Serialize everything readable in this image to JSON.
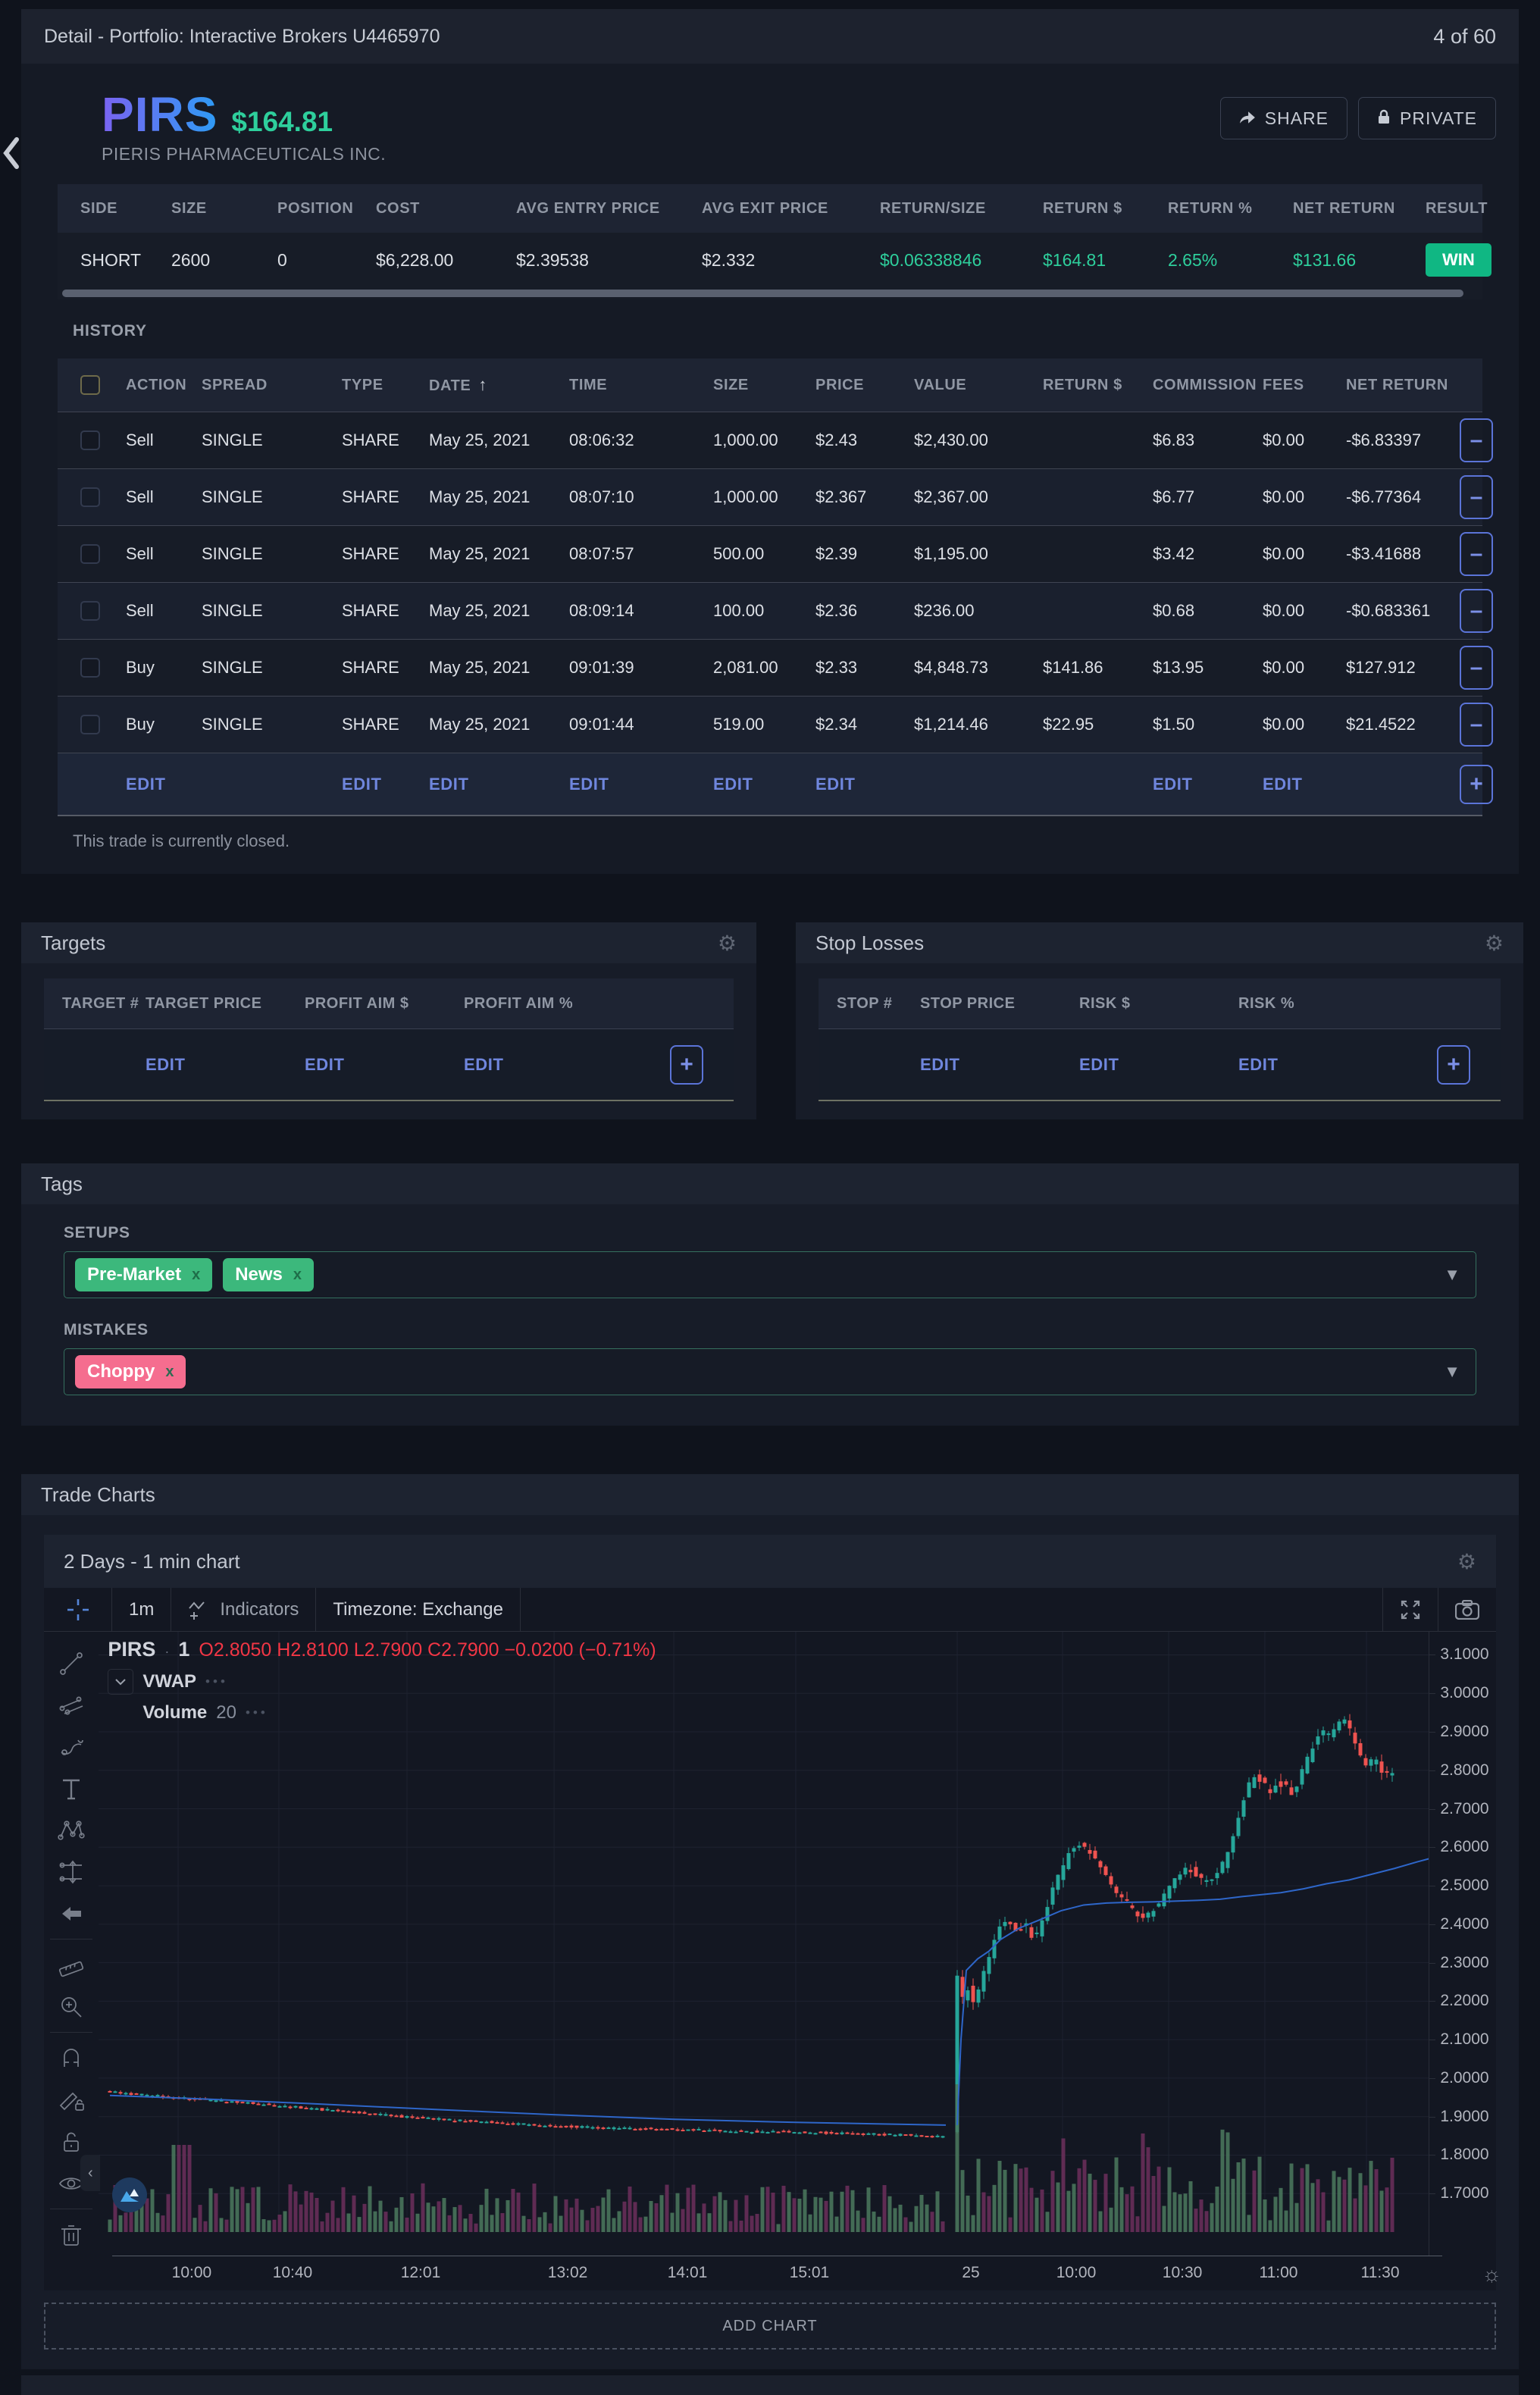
{
  "top_bar": {
    "breadcrumb": "Detail  -  Portfolio:   Interactive Brokers U4465970",
    "counter": "4 of 60"
  },
  "header": {
    "symbol": "PIRS",
    "price": "$164.81",
    "company": "PIERIS PHARMACEUTICALS INC.",
    "share_label": "SHARE",
    "private_label": "PRIVATE"
  },
  "summary": {
    "columns": [
      "SIDE",
      "SIZE",
      "POSITION",
      "COST",
      "AVG ENTRY PRICE",
      "AVG EXIT PRICE",
      "RETURN/SIZE",
      "RETURN $",
      "RETURN %",
      "NET RETURN",
      "RESULT"
    ],
    "values": [
      "SHORT",
      "2600",
      "0",
      "$6,228.00",
      "$2.39538",
      "$2.332",
      "$0.06338846",
      "$164.81",
      "2.65%",
      "$131.66"
    ],
    "result": "WIN"
  },
  "history": {
    "title": "HISTORY",
    "columns": [
      "ACTION",
      "SPREAD",
      "TYPE",
      "DATE",
      "TIME",
      "SIZE",
      "PRICE",
      "VALUE",
      "RETURN $",
      "COMMISSION",
      "FEES",
      "NET RETURN"
    ],
    "rows": [
      [
        "Sell",
        "SINGLE",
        "SHARE",
        "May 25, 2021",
        "08:06:32",
        "1,000.00",
        "$2.43",
        "$2,430.00",
        "",
        "$6.83",
        "$0.00",
        "-$6.83397"
      ],
      [
        "Sell",
        "SINGLE",
        "SHARE",
        "May 25, 2021",
        "08:07:10",
        "1,000.00",
        "$2.367",
        "$2,367.00",
        "",
        "$6.77",
        "$0.00",
        "-$6.77364"
      ],
      [
        "Sell",
        "SINGLE",
        "SHARE",
        "May 25, 2021",
        "08:07:57",
        "500.00",
        "$2.39",
        "$1,195.00",
        "",
        "$3.42",
        "$0.00",
        "-$3.41688"
      ],
      [
        "Sell",
        "SINGLE",
        "SHARE",
        "May 25, 2021",
        "08:09:14",
        "100.00",
        "$2.36",
        "$236.00",
        "",
        "$0.68",
        "$0.00",
        "-$0.683361"
      ],
      [
        "Buy",
        "SINGLE",
        "SHARE",
        "May 25, 2021",
        "09:01:39",
        "2,081.00",
        "$2.33",
        "$4,848.73",
        "$141.86",
        "$13.95",
        "$0.00",
        "$127.912"
      ],
      [
        "Buy",
        "SINGLE",
        "SHARE",
        "May 25, 2021",
        "09:01:44",
        "519.00",
        "$2.34",
        "$1,214.46",
        "$22.95",
        "$1.50",
        "$0.00",
        "$21.4522"
      ]
    ],
    "edit_label": "EDIT",
    "note": "This trade is currently closed."
  },
  "targets": {
    "title": "Targets",
    "columns": [
      "TARGET #",
      "TARGET PRICE",
      "PROFIT AIM $",
      "PROFIT AIM %"
    ],
    "edit_label": "EDIT"
  },
  "stop_losses": {
    "title": "Stop Losses",
    "columns": [
      "STOP #",
      "STOP PRICE",
      "RISK $",
      "RISK %"
    ],
    "edit_label": "EDIT"
  },
  "tags": {
    "title": "Tags",
    "setups_label": "SETUPS",
    "mistakes_label": "MISTAKES",
    "setups": [
      "Pre-Market",
      "News"
    ],
    "mistakes": [
      "Choppy"
    ],
    "remove_glyph": "x"
  },
  "trade_charts": {
    "title": "Trade Charts",
    "chart_title": "2 Days  -  1 min  chart",
    "toolbar": {
      "interval": "1m",
      "indicators": "Indicators",
      "timezone": "Timezone: Exchange"
    },
    "legend": {
      "symbol": "PIRS",
      "interval": "1",
      "ohlc": "O2.8050  H2.8100  L2.7900  C2.7900  −0.0200 (−0.71%)",
      "vwap": "VWAP",
      "volume": "Volume",
      "volume_param": "20",
      "dots": "•••"
    },
    "add_chart": "ADD CHART"
  },
  "chart_data": {
    "type": "candlestick",
    "title": "PIRS 1-minute, 2 days",
    "ylim": [
      1.6,
      3.16
    ],
    "y_ticks": [
      3.1,
      3.0,
      2.9,
      2.8,
      2.7,
      2.6,
      2.5,
      2.4,
      2.3,
      2.2,
      2.1,
      2.0,
      1.9,
      1.8,
      1.7
    ],
    "x_ticks": [
      {
        "f": 0.0598,
        "label": "10:00"
      },
      {
        "f": 0.1356,
        "label": "10:40"
      },
      {
        "f": 0.2319,
        "label": "12:01"
      },
      {
        "f": 0.3425,
        "label": "13:02"
      },
      {
        "f": 0.4325,
        "label": "14:01"
      },
      {
        "f": 0.5242,
        "label": "15:01"
      },
      {
        "f": 0.6456,
        "label": "25"
      },
      {
        "f": 0.7248,
        "label": "10:00"
      },
      {
        "f": 0.8046,
        "label": "10:30"
      },
      {
        "f": 0.8769,
        "label": "11:00"
      },
      {
        "f": 0.9533,
        "label": "11:30"
      }
    ],
    "last_bar": {
      "open": 2.805,
      "high": 2.81,
      "low": 2.79,
      "close": 2.79,
      "change": -0.02,
      "change_pct": -0.71
    },
    "candle_step": 7,
    "seed": 987654321,
    "day1_path": [
      [
        15,
        1.965
      ],
      [
        105,
        1.95
      ],
      [
        238,
        1.93
      ],
      [
        320,
        1.915
      ],
      [
        407,
        1.9
      ],
      [
        500,
        1.888
      ],
      [
        601,
        1.876
      ],
      [
        680,
        1.87
      ],
      [
        759,
        1.868
      ],
      [
        850,
        1.862
      ],
      [
        920,
        1.86
      ],
      [
        1000,
        1.856
      ],
      [
        1070,
        1.852
      ],
      [
        1118,
        1.848
      ]
    ],
    "day2_path": [
      [
        1133,
        1.86
      ],
      [
        1140,
        2.26
      ],
      [
        1147,
        2.21
      ],
      [
        1155,
        2.24
      ],
      [
        1162,
        2.19
      ],
      [
        1175,
        2.27
      ],
      [
        1190,
        2.37
      ],
      [
        1205,
        2.42
      ],
      [
        1217,
        2.38
      ],
      [
        1230,
        2.4
      ],
      [
        1242,
        2.36
      ],
      [
        1255,
        2.42
      ],
      [
        1268,
        2.5
      ],
      [
        1280,
        2.55
      ],
      [
        1290,
        2.6
      ],
      [
        1300,
        2.61
      ],
      [
        1312,
        2.59
      ],
      [
        1325,
        2.56
      ],
      [
        1338,
        2.52
      ],
      [
        1350,
        2.48
      ],
      [
        1362,
        2.46
      ],
      [
        1375,
        2.43
      ],
      [
        1388,
        2.42
      ],
      [
        1400,
        2.44
      ],
      [
        1412,
        2.47
      ],
      [
        1422,
        2.5
      ],
      [
        1432,
        2.53
      ],
      [
        1440,
        2.55
      ],
      [
        1450,
        2.54
      ],
      [
        1460,
        2.52
      ],
      [
        1470,
        2.51
      ],
      [
        1482,
        2.53
      ],
      [
        1492,
        2.56
      ],
      [
        1502,
        2.62
      ],
      [
        1512,
        2.69
      ],
      [
        1522,
        2.75
      ],
      [
        1532,
        2.79
      ],
      [
        1542,
        2.77
      ],
      [
        1552,
        2.74
      ],
      [
        1562,
        2.77
      ],
      [
        1572,
        2.76
      ],
      [
        1582,
        2.74
      ],
      [
        1592,
        2.78
      ],
      [
        1602,
        2.83
      ],
      [
        1612,
        2.87
      ],
      [
        1622,
        2.9
      ],
      [
        1632,
        2.89
      ],
      [
        1640,
        2.92
      ],
      [
        1648,
        2.94
      ],
      [
        1656,
        2.91
      ],
      [
        1664,
        2.87
      ],
      [
        1672,
        2.83
      ],
      [
        1680,
        2.81
      ],
      [
        1690,
        2.83
      ],
      [
        1700,
        2.8
      ],
      [
        1710,
        2.79
      ]
    ],
    "vwap_day1": [
      [
        15,
        1.955
      ],
      [
        150,
        1.945
      ],
      [
        300,
        1.932
      ],
      [
        450,
        1.918
      ],
      [
        600,
        1.905
      ],
      [
        760,
        1.893
      ],
      [
        920,
        1.885
      ],
      [
        1118,
        1.878
      ]
    ],
    "vwap_day2": [
      [
        1133,
        1.878
      ],
      [
        1138,
        2.1
      ],
      [
        1145,
        2.28
      ],
      [
        1160,
        2.31
      ],
      [
        1175,
        2.33
      ],
      [
        1190,
        2.36
      ],
      [
        1215,
        2.39
      ],
      [
        1240,
        2.41
      ],
      [
        1270,
        2.435
      ],
      [
        1300,
        2.45
      ],
      [
        1330,
        2.455
      ],
      [
        1360,
        2.457
      ],
      [
        1390,
        2.458
      ],
      [
        1420,
        2.46
      ],
      [
        1450,
        2.462
      ],
      [
        1480,
        2.465
      ],
      [
        1510,
        2.472
      ],
      [
        1540,
        2.478
      ],
      [
        1560,
        2.482
      ],
      [
        1590,
        2.492
      ],
      [
        1620,
        2.505
      ],
      [
        1650,
        2.515
      ],
      [
        1680,
        2.53
      ],
      [
        1710,
        2.545
      ],
      [
        1740,
        2.562
      ],
      [
        1770,
        2.578
      ],
      [
        1800,
        2.59
      ],
      [
        1830,
        2.597
      ],
      [
        1860,
        2.6
      ]
    ],
    "colors": {
      "up": "#26a69a",
      "down": "#ef5350",
      "vwap": "#2e66c9",
      "vol_up": "#4c7a5e",
      "vol_down": "#6d2f5c",
      "grid": "#1e2230"
    }
  }
}
